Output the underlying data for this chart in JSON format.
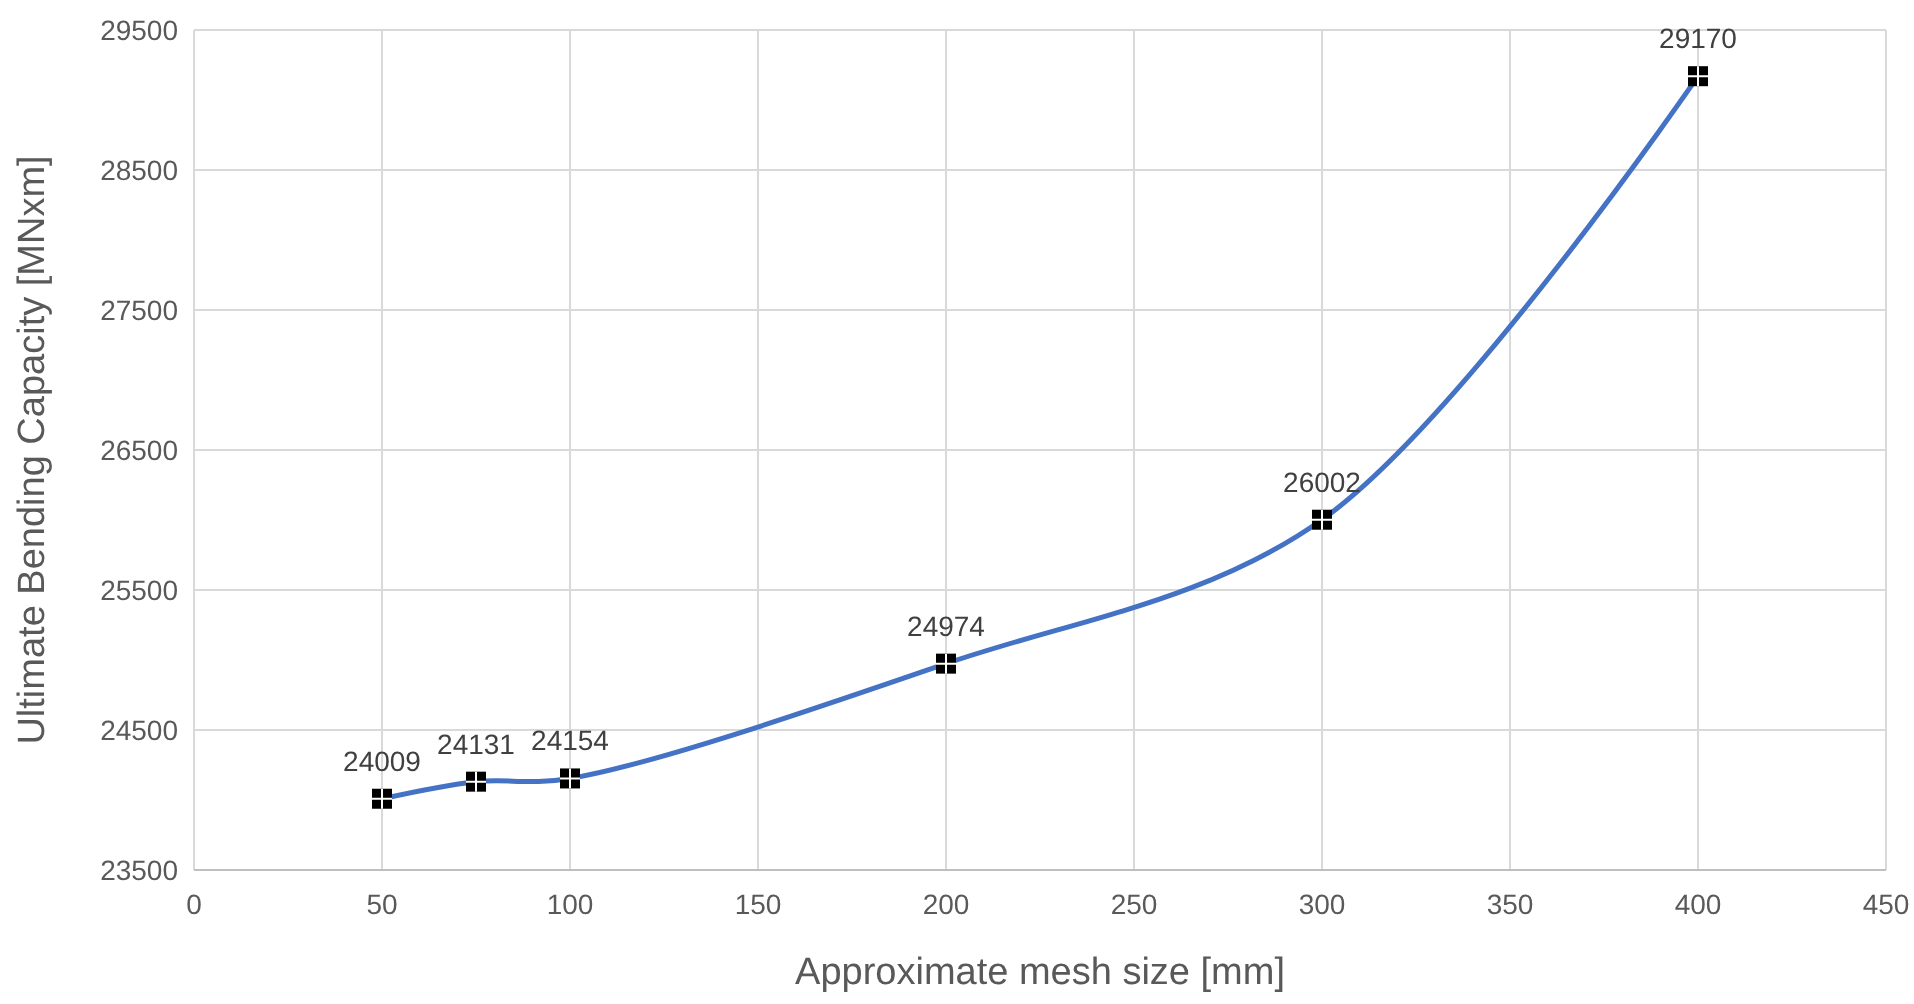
{
  "chart_data": {
    "type": "line",
    "xlabel": "Approximate mesh size [mm]",
    "ylabel": "Ultimate Bending Capacity [MNxm]",
    "x": [
      50,
      75,
      100,
      200,
      300,
      400
    ],
    "series": [
      {
        "color": "#4472c4",
        "values": [
          24009,
          24131,
          24154,
          24974,
          26002,
          29170
        ]
      }
    ],
    "xlim": [
      0,
      450
    ],
    "xticks": [
      0,
      50,
      100,
      150,
      200,
      250,
      300,
      350,
      400,
      450
    ],
    "ylim": [
      23500,
      29500
    ],
    "yticks": [
      23500,
      24500,
      25500,
      26500,
      27500,
      28500,
      29500
    ],
    "grid": true,
    "marker": "square",
    "data_labels": true,
    "line_style": "solid"
  }
}
